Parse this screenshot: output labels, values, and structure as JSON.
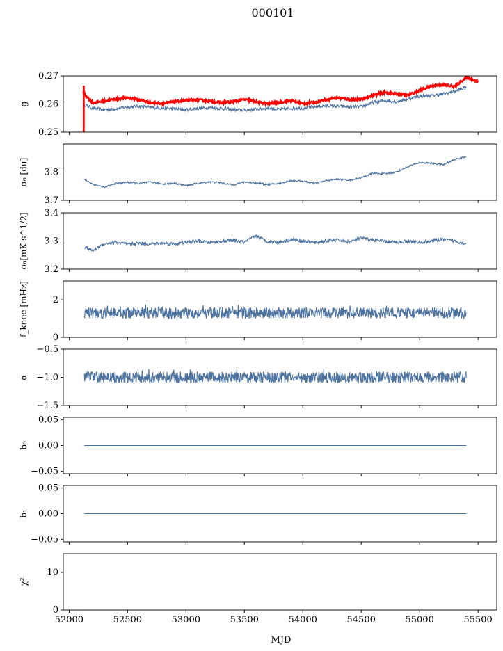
{
  "figure_title": "000101",
  "shared_x": {
    "label": "MJD",
    "range": [
      51950,
      55660
    ],
    "ticks": [
      52000,
      52500,
      53000,
      53500,
      54000,
      54500,
      55000,
      55500
    ],
    "tick_labels": [
      "52000",
      "52500",
      "53000",
      "53500",
      "54000",
      "54500",
      "55000",
      "55500"
    ]
  },
  "colors": {
    "series": "#4c72a0",
    "highlight": "#ff0000"
  },
  "chart_data": [
    {
      "type": "line",
      "ylabel": "g",
      "ylim": [
        0.25,
        0.27
      ],
      "yticks": [
        0.25,
        0.26,
        0.27
      ],
      "ytick_labels": [
        "0.25",
        "0.26",
        "0.27"
      ],
      "series": [
        {
          "color": "#4c72a0",
          "x": [
            52120,
            52200,
            52300,
            52400,
            52500,
            52600,
            52700,
            52800,
            52900,
            53000,
            53100,
            53200,
            53300,
            53400,
            53500,
            53600,
            53700,
            53800,
            53900,
            54000,
            54100,
            54200,
            54300,
            54400,
            54500,
            54600,
            54700,
            54800,
            54900,
            55000,
            55100,
            55200,
            55300,
            55400
          ],
          "values": [
            0.26,
            0.2585,
            0.258,
            0.2583,
            0.259,
            0.2592,
            0.2588,
            0.2585,
            0.2583,
            0.2579,
            0.2584,
            0.2588,
            0.2585,
            0.258,
            0.2578,
            0.2582,
            0.2586,
            0.258,
            0.2585,
            0.2586,
            0.259,
            0.2594,
            0.2592,
            0.259,
            0.259,
            0.2605,
            0.2612,
            0.2608,
            0.2618,
            0.2628,
            0.263,
            0.2635,
            0.2645,
            0.266
          ]
        },
        {
          "color": "#ff0000",
          "x": [
            52120,
            52200,
            52300,
            52400,
            52500,
            52600,
            52700,
            52800,
            52900,
            53000,
            53100,
            53200,
            53300,
            53400,
            53500,
            53600,
            53700,
            53800,
            53900,
            54000,
            54100,
            54200,
            54300,
            54400,
            54500,
            54600,
            54700,
            54800,
            54900,
            55000,
            55100,
            55200,
            55300,
            55400,
            55500
          ],
          "values": [
            0.264,
            0.2605,
            0.261,
            0.2618,
            0.2622,
            0.2615,
            0.2605,
            0.2602,
            0.2608,
            0.2612,
            0.2615,
            0.261,
            0.2605,
            0.2608,
            0.2616,
            0.2608,
            0.2601,
            0.2606,
            0.2612,
            0.2601,
            0.2606,
            0.2616,
            0.2622,
            0.2616,
            0.2616,
            0.2631,
            0.2641,
            0.2636,
            0.2631,
            0.2648,
            0.2664,
            0.2668,
            0.2662,
            0.2695,
            0.268
          ]
        }
      ]
    },
    {
      "type": "line",
      "ylabel": "σ₀ [du]",
      "ylim": [
        3.7,
        3.9
      ],
      "yticks": [
        3.7,
        3.8
      ],
      "ytick_labels": [
        "3.7",
        "3.8"
      ],
      "series": [
        {
          "color": "#4c72a0",
          "x": [
            52130,
            52200,
            52300,
            52400,
            52500,
            52600,
            52700,
            52800,
            52900,
            53000,
            53100,
            53200,
            53300,
            53400,
            53500,
            53600,
            53700,
            53800,
            53900,
            54000,
            54100,
            54200,
            54300,
            54400,
            54500,
            54600,
            54700,
            54800,
            54900,
            55000,
            55100,
            55200,
            55300,
            55400
          ],
          "values": [
            3.775,
            3.758,
            3.746,
            3.76,
            3.764,
            3.76,
            3.765,
            3.758,
            3.761,
            3.752,
            3.76,
            3.766,
            3.762,
            3.755,
            3.765,
            3.762,
            3.756,
            3.76,
            3.77,
            3.768,
            3.76,
            3.77,
            3.775,
            3.772,
            3.78,
            3.796,
            3.794,
            3.8,
            3.82,
            3.834,
            3.832,
            3.826,
            3.845,
            3.855
          ]
        }
      ]
    },
    {
      "type": "line",
      "ylabel": "σ₀[mK s^1/2]",
      "ylim": [
        3.2,
        3.4
      ],
      "yticks": [
        3.2,
        3.3,
        3.4
      ],
      "ytick_labels": [
        "3.2",
        "3.3",
        "3.4"
      ],
      "series": [
        {
          "color": "#4c72a0",
          "x": [
            52130,
            52200,
            52300,
            52400,
            52500,
            52600,
            52700,
            52800,
            52900,
            53000,
            53100,
            53200,
            53300,
            53400,
            53500,
            53600,
            53700,
            53800,
            53900,
            54000,
            54100,
            54200,
            54300,
            54400,
            54500,
            54600,
            54700,
            54800,
            54900,
            55000,
            55100,
            55200,
            55300,
            55400
          ],
          "values": [
            3.28,
            3.265,
            3.29,
            3.296,
            3.288,
            3.292,
            3.29,
            3.292,
            3.29,
            3.295,
            3.3,
            3.294,
            3.298,
            3.302,
            3.296,
            3.318,
            3.298,
            3.296,
            3.305,
            3.3,
            3.294,
            3.3,
            3.303,
            3.297,
            3.31,
            3.304,
            3.298,
            3.295,
            3.3,
            3.294,
            3.3,
            3.305,
            3.3,
            3.29
          ]
        }
      ]
    },
    {
      "type": "line",
      "ylabel": "f_knee [mHz]",
      "ylim": [
        0,
        3
      ],
      "yticks": [
        0,
        2
      ],
      "ytick_labels": [
        "0",
        "2"
      ],
      "series": [
        {
          "color": "#4c72a0",
          "x_start": 52130,
          "x_end": 55400,
          "mean": 1.3,
          "amplitude": 0.3,
          "values_note": ""
        }
      ]
    },
    {
      "type": "line",
      "ylabel": "α",
      "ylim": [
        -1.5,
        -0.5
      ],
      "yticks": [
        -1.5,
        -1.0,
        -0.5
      ],
      "ytick_labels": [
        "−1.5",
        "−1.0",
        "−0.5"
      ],
      "series": [
        {
          "color": "#4c72a0",
          "x_start": 52130,
          "x_end": 55400,
          "mean": -1.0,
          "amplitude": 0.1
        }
      ]
    },
    {
      "type": "line",
      "ylabel": "b₀",
      "ylim": [
        -0.055,
        0.055
      ],
      "yticks": [
        -0.05,
        0.0,
        0.05
      ],
      "ytick_labels": [
        "−0.05",
        "0.00",
        "0.05"
      ],
      "series": [
        {
          "color": "#4c72a0",
          "x": [
            52130,
            55400
          ],
          "values": [
            0.0,
            0.0
          ]
        }
      ]
    },
    {
      "type": "line",
      "ylabel": "b₁",
      "ylim": [
        -0.055,
        0.055
      ],
      "yticks": [
        -0.05,
        0.0,
        0.05
      ],
      "ytick_labels": [
        "−0.05",
        "0.00",
        "0.05"
      ],
      "series": [
        {
          "color": "#4c72a0",
          "x": [
            52130,
            55400
          ],
          "values": [
            0.0,
            0.0
          ]
        }
      ]
    },
    {
      "type": "line",
      "ylabel": "χ²",
      "ylim": [
        0,
        15
      ],
      "yticks": [
        0,
        10
      ],
      "ytick_labels": [
        "0",
        "10"
      ],
      "series": [
        {
          "color": "#4c72a0",
          "x": [
            52130,
            55400
          ],
          "values": [
            0.0,
            0.0
          ]
        }
      ]
    }
  ]
}
